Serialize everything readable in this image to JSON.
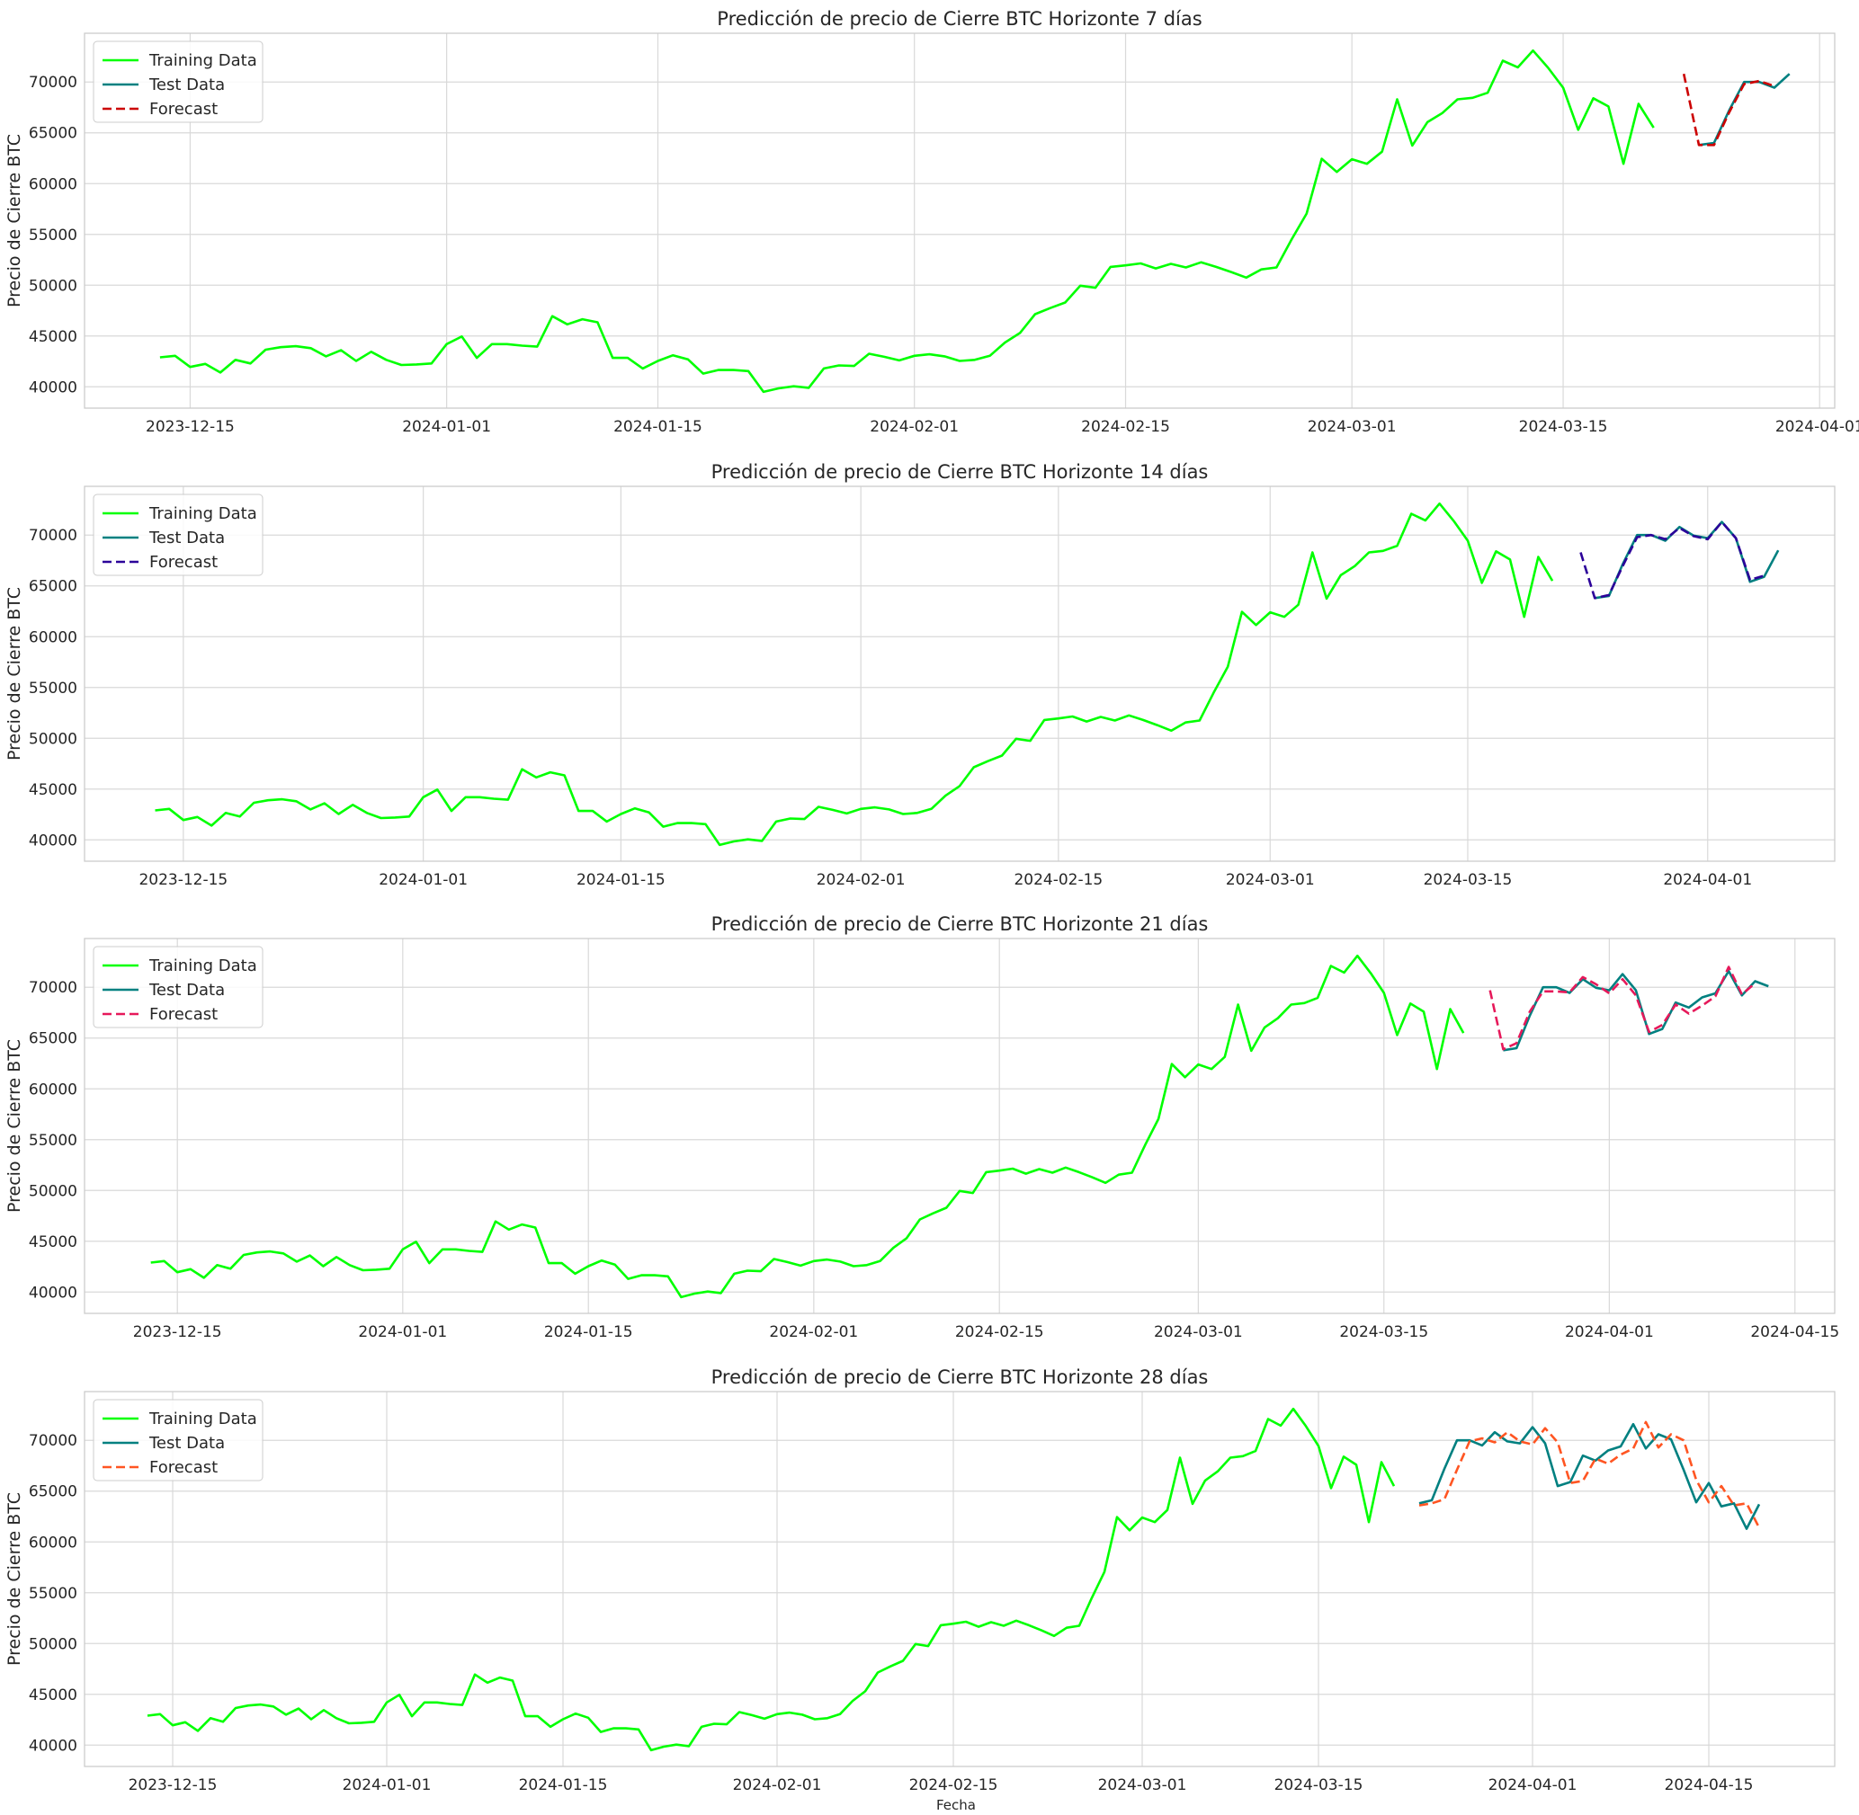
{
  "figure": {
    "xlabel": "Fecha"
  },
  "colors": {
    "training": "#00ff00",
    "test": "#008080",
    "grid": "#d9d9d9",
    "spine": "#cccccc",
    "forecast_h7": "#cc0000",
    "forecast_h14": "#2b0099",
    "forecast_h21": "#e6195a",
    "forecast_h28": "#ff5522"
  },
  "legend": {
    "placement": "upper-left",
    "training_label": "Training Data",
    "test_label": "Test Data",
    "forecast_label": "Forecast"
  },
  "chart_data": [
    {
      "type": "line",
      "title": "Predicción de precio de Cierre BTC Horizonte 7 días",
      "ylabel": "Precio de Cierre BTC",
      "xlabel": "",
      "grid": true,
      "x_range": [
        "2023-12-08",
        "2024-04-02"
      ],
      "ylim": [
        37900,
        74800
      ],
      "yticks": [
        40000,
        45000,
        50000,
        55000,
        60000,
        65000,
        70000
      ],
      "xticks": [
        "2023-12-15",
        "2024-01-01",
        "2024-01-15",
        "2024-02-01",
        "2024-02-15",
        "2024-03-01",
        "2024-03-15",
        "2024-04-01"
      ],
      "training": {
        "start": "2023-12-13",
        "values": [
          42900,
          43050,
          41950,
          42250,
          41400,
          42650,
          42300,
          43650,
          43900,
          44000,
          43800,
          43000,
          43600,
          42550,
          43450,
          42650,
          42150,
          42200,
          42300,
          44200,
          44950,
          42850,
          44200,
          44200,
          44050,
          43950,
          46950,
          46150,
          46650,
          46350,
          42850,
          42850,
          41800,
          42550,
          43100,
          42700,
          41300,
          41650,
          41650,
          41550,
          39500,
          39850,
          40050,
          39900,
          41800,
          42100,
          42050,
          43250,
          42950,
          42600,
          43050,
          43200,
          43000,
          42550,
          42650,
          43050,
          44350,
          45300,
          47150,
          47750,
          48300,
          49950,
          49750,
          51800,
          51950,
          52150,
          51650,
          52100,
          51750,
          52250,
          51800,
          51300,
          50750,
          51550,
          51750,
          54500,
          57050,
          62450,
          61150,
          62400,
          61950,
          63150,
          68300,
          63750,
          66050,
          66950,
          68300,
          68450,
          68950,
          72100,
          71450,
          73100,
          71400,
          69450,
          65300,
          68400,
          67600,
          61950,
          67850,
          65500
        ]
      },
      "test": {
        "start": "2024-03-24",
        "values": [
          63800,
          64000,
          67200,
          70000,
          70000,
          69450,
          70800
        ]
      },
      "forecast": {
        "start": "2024-03-23",
        "values": [
          70800,
          63800,
          63800,
          67000,
          69800,
          70100,
          69600
        ]
      }
    },
    {
      "type": "line",
      "title": "Predicción de precio de Cierre BTC Horizonte 14 días",
      "ylabel": "Precio de Cierre BTC",
      "xlabel": "",
      "grid": true,
      "x_range": [
        "2023-12-08",
        "2024-04-10"
      ],
      "ylim": [
        37900,
        74800
      ],
      "yticks": [
        40000,
        45000,
        50000,
        55000,
        60000,
        65000,
        70000
      ],
      "xticks": [
        "2023-12-15",
        "2024-01-01",
        "2024-01-15",
        "2024-02-01",
        "2024-02-15",
        "2024-03-01",
        "2024-03-15",
        "2024-04-01"
      ],
      "training": {
        "start": "2023-12-13",
        "values": [
          42900,
          43050,
          41950,
          42250,
          41400,
          42650,
          42300,
          43650,
          43900,
          44000,
          43800,
          43000,
          43600,
          42550,
          43450,
          42650,
          42150,
          42200,
          42300,
          44200,
          44950,
          42850,
          44200,
          44200,
          44050,
          43950,
          46950,
          46150,
          46650,
          46350,
          42850,
          42850,
          41800,
          42550,
          43100,
          42700,
          41300,
          41650,
          41650,
          41550,
          39500,
          39850,
          40050,
          39900,
          41800,
          42100,
          42050,
          43250,
          42950,
          42600,
          43050,
          43200,
          43000,
          42550,
          42650,
          43050,
          44350,
          45300,
          47150,
          47750,
          48300,
          49950,
          49750,
          51800,
          51950,
          52150,
          51650,
          52100,
          51750,
          52250,
          51800,
          51300,
          50750,
          51550,
          51750,
          54500,
          57050,
          62450,
          61150,
          62400,
          61950,
          63150,
          68300,
          63750,
          66050,
          66950,
          68300,
          68450,
          68950,
          72100,
          71450,
          73100,
          71400,
          69450,
          65300,
          68400,
          67600,
          61950,
          67850,
          65500
        ]
      },
      "test": {
        "start": "2024-03-24",
        "values": [
          63800,
          64000,
          67200,
          70000,
          70000,
          69450,
          70800,
          69950,
          69700,
          71300,
          69700,
          65400,
          65900,
          68500
        ]
      },
      "forecast": {
        "start": "2024-03-23",
        "values": [
          68300,
          63800,
          64100,
          67000,
          69800,
          70000,
          69600,
          70700,
          69900,
          69600,
          71300,
          69700,
          65600,
          66000
        ]
      }
    },
    {
      "type": "line",
      "title": "Predicción de precio de Cierre BTC Horizonte 21 días",
      "ylabel": "Precio de Cierre BTC",
      "xlabel": "",
      "grid": true,
      "x_range": [
        "2023-12-08",
        "2024-04-18"
      ],
      "ylim": [
        37900,
        74800
      ],
      "yticks": [
        40000,
        45000,
        50000,
        55000,
        60000,
        65000,
        70000
      ],
      "xticks": [
        "2023-12-15",
        "2024-01-01",
        "2024-01-15",
        "2024-02-01",
        "2024-02-15",
        "2024-03-01",
        "2024-03-15",
        "2024-04-01",
        "2024-04-15"
      ],
      "training": {
        "start": "2023-12-13",
        "values": [
          42900,
          43050,
          41950,
          42250,
          41400,
          42650,
          42300,
          43650,
          43900,
          44000,
          43800,
          43000,
          43600,
          42550,
          43450,
          42650,
          42150,
          42200,
          42300,
          44200,
          44950,
          42850,
          44200,
          44200,
          44050,
          43950,
          46950,
          46150,
          46650,
          46350,
          42850,
          42850,
          41800,
          42550,
          43100,
          42700,
          41300,
          41650,
          41650,
          41550,
          39500,
          39850,
          40050,
          39900,
          41800,
          42100,
          42050,
          43250,
          42950,
          42600,
          43050,
          43200,
          43000,
          42550,
          42650,
          43050,
          44350,
          45300,
          47150,
          47750,
          48300,
          49950,
          49750,
          51800,
          51950,
          52150,
          51650,
          52100,
          51750,
          52250,
          51800,
          51300,
          50750,
          51550,
          51750,
          54500,
          57050,
          62450,
          61150,
          62400,
          61950,
          63150,
          68300,
          63750,
          66050,
          66950,
          68300,
          68450,
          68950,
          72100,
          71450,
          73100,
          71400,
          69450,
          65300,
          68400,
          67600,
          61950,
          67850,
          65500
        ]
      },
      "test": {
        "start": "2024-03-24",
        "values": [
          63800,
          64000,
          67200,
          70000,
          70000,
          69450,
          70800,
          69950,
          69700,
          71300,
          69700,
          65400,
          65900,
          68500,
          68000,
          69000,
          69400,
          71600,
          69200,
          70600,
          70100
        ]
      },
      "forecast": {
        "start": "2024-03-23",
        "values": [
          69700,
          63900,
          64500,
          67600,
          69600,
          69600,
          69500,
          71000,
          70300,
          69400,
          70800,
          69200,
          65600,
          66300,
          68300,
          67400,
          68200,
          69100,
          72000,
          69300,
          70400
        ]
      }
    },
    {
      "type": "line",
      "title": "Predicción de precio de Cierre BTC Horizonte 28 días",
      "ylabel": "Precio de Cierre BTC",
      "xlabel": "Fecha",
      "grid": true,
      "x_range": [
        "2023-12-08",
        "2024-04-25"
      ],
      "ylim": [
        37900,
        74800
      ],
      "yticks": [
        40000,
        45000,
        50000,
        55000,
        60000,
        65000,
        70000
      ],
      "xticks": [
        "2023-12-15",
        "2024-01-01",
        "2024-01-15",
        "2024-02-01",
        "2024-02-15",
        "2024-03-01",
        "2024-03-15",
        "2024-04-01",
        "2024-04-15"
      ],
      "training": {
        "start": "2023-12-13",
        "values": [
          42900,
          43050,
          41950,
          42250,
          41400,
          42650,
          42300,
          43650,
          43900,
          44000,
          43800,
          43000,
          43600,
          42550,
          43450,
          42650,
          42150,
          42200,
          42300,
          44200,
          44950,
          42850,
          44200,
          44200,
          44050,
          43950,
          46950,
          46150,
          46650,
          46350,
          42850,
          42850,
          41800,
          42550,
          43100,
          42700,
          41300,
          41650,
          41650,
          41550,
          39500,
          39850,
          40050,
          39900,
          41800,
          42100,
          42050,
          43250,
          42950,
          42600,
          43050,
          43200,
          43000,
          42550,
          42650,
          43050,
          44350,
          45300,
          47150,
          47750,
          48300,
          49950,
          49750,
          51800,
          51950,
          52150,
          51650,
          52100,
          51750,
          52250,
          51800,
          51300,
          50750,
          51550,
          51750,
          54500,
          57050,
          62450,
          61150,
          62400,
          61950,
          63150,
          68300,
          63750,
          66050,
          66950,
          68300,
          68450,
          68950,
          72100,
          71450,
          73100,
          71400,
          69450,
          65300,
          68400,
          67600,
          61950,
          67850,
          65500
        ]
      },
      "test": {
        "start": "2024-03-23",
        "values": [
          63800,
          64100,
          67200,
          70000,
          70000,
          69500,
          70800,
          69900,
          69700,
          71300,
          69700,
          65500,
          65900,
          68500,
          68000,
          69000,
          69400,
          71600,
          69200,
          70600,
          70100,
          67100,
          63900,
          65800,
          63500,
          63800,
          61300,
          63700
        ]
      },
      "forecast": {
        "start": "2024-03-23",
        "values": [
          63600,
          63800,
          64200,
          67100,
          69900,
          70200,
          69800,
          70800,
          69900,
          69600,
          71200,
          69800,
          65800,
          66000,
          68200,
          67700,
          68600,
          69200,
          71800,
          69300,
          70600,
          70000,
          66100,
          63900,
          65500,
          63600,
          63800,
          61400
        ]
      }
    }
  ]
}
